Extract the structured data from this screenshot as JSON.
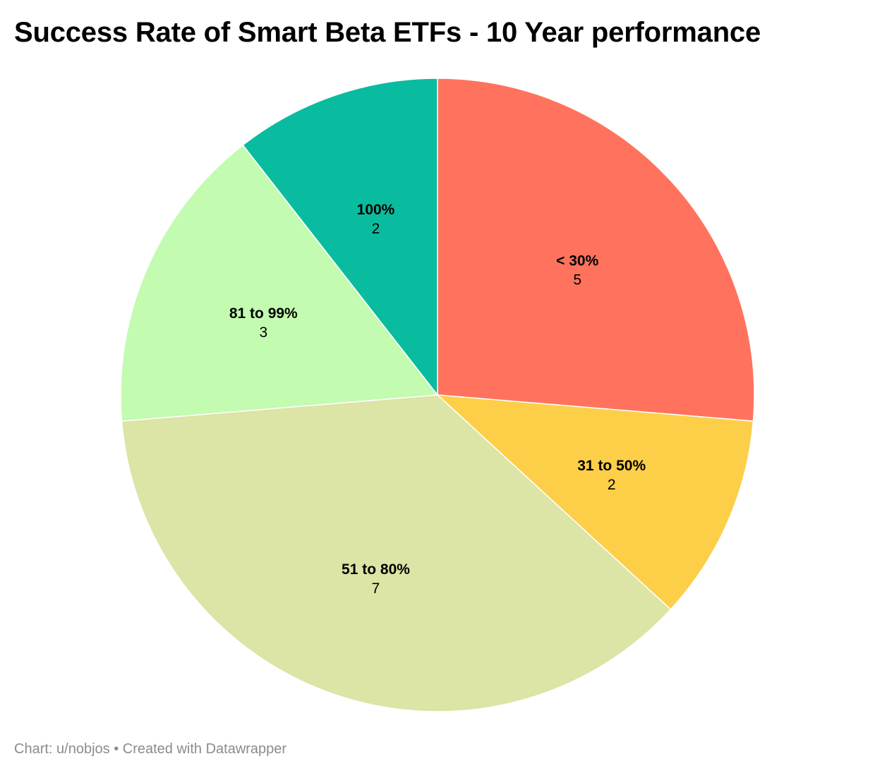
{
  "chart_data": {
    "type": "pie",
    "title": "Success Rate of Smart Beta ETFs - 10 Year performance",
    "categories": [
      "< 30%",
      "31 to 50%",
      "51 to 80%",
      "81 to 99%",
      "100%"
    ],
    "values": [
      5,
      2,
      7,
      3,
      2
    ],
    "colors": [
      "#ff735e",
      "#fdcf48",
      "#dce4a6",
      "#c3fbb0",
      "#0abc9f"
    ],
    "start_angle": "12 o'clock",
    "direction": "clockwise",
    "legend": "none"
  },
  "footer": {
    "credit": "Chart: u/nobjos • Created with Datawrapper"
  }
}
